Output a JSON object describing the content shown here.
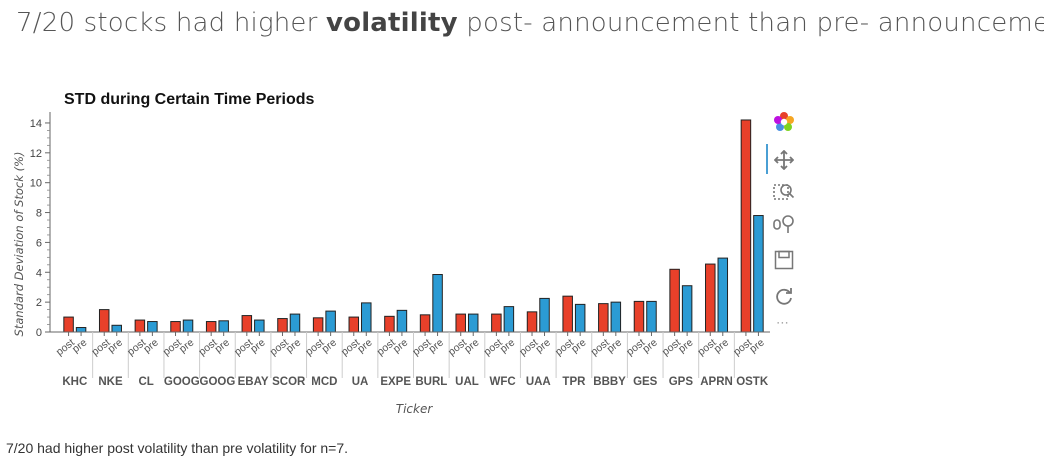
{
  "headline": {
    "prefix": "7/20 stocks had higher ",
    "emphasis": "volatility",
    "suffix": " post- announcement than pre- announcement"
  },
  "caption": "7/20 had higher post volatility than pre volatility for n=7.",
  "toolbar": {
    "tools": [
      "bokeh-logo-icon",
      "pan-icon",
      "box-zoom-icon",
      "wheel-zoom-icon",
      "save-icon",
      "reset-icon"
    ],
    "more_label": "⋯"
  },
  "chart_data": {
    "type": "bar",
    "title": "STD during Certain Time Periods",
    "xlabel": "Ticker",
    "ylabel": "Standard Deviation of Stock (%)",
    "ylim": [
      0,
      14.6
    ],
    "yticks": [
      0,
      2,
      4,
      6,
      8,
      10,
      12,
      14
    ],
    "grid": false,
    "legend": "none",
    "subcategories": [
      "post",
      "pre"
    ],
    "colors": {
      "post": "#e8402a",
      "pre": "#2b9bd4"
    },
    "categories": [
      "KHC",
      "NKE",
      "CL",
      "GOOG",
      "GOOGL",
      "EBAY",
      "SCOR",
      "MCD",
      "UA",
      "EXPE",
      "BURL",
      "UAL",
      "WFC",
      "UAA",
      "TPR",
      "BBBY",
      "GES",
      "GPS",
      "APRN",
      "OSTK"
    ],
    "category_labels": [
      "KHC",
      "NKE",
      "CL",
      "GOOG",
      "GOOG",
      "EBAY",
      "SCOR",
      "MCD",
      "UA",
      "EXPE",
      "BURL",
      "UAL",
      "WFC",
      "UAA",
      "TPR",
      "BBBY",
      "GES",
      "GPS",
      "APRN",
      "OSTK"
    ],
    "series": [
      {
        "values": [
          1.0,
          1.5,
          0.8,
          0.7,
          0.7,
          1.1,
          0.9,
          0.95,
          1.0,
          1.05,
          1.15,
          1.2,
          1.2,
          1.35,
          2.4,
          1.9,
          2.05,
          4.2,
          4.55,
          14.2
        ]
      },
      {
        "values": [
          0.3,
          0.45,
          0.7,
          0.8,
          0.75,
          0.8,
          1.2,
          1.4,
          1.95,
          1.45,
          3.85,
          1.2,
          1.7,
          2.25,
          1.85,
          2.0,
          2.05,
          3.1,
          4.95,
          7.8
        ]
      }
    ]
  }
}
